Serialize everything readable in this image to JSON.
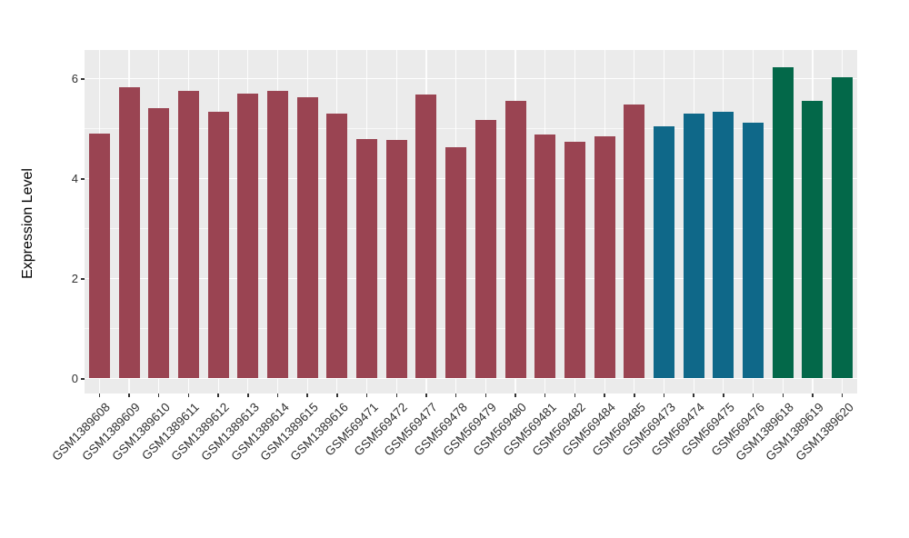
{
  "chart_data": {
    "type": "bar",
    "title": "",
    "xlabel": "",
    "ylabel": "Expression Level",
    "ylim": [
      -0.31,
      6.56
    ],
    "yticks_major": [
      0,
      2,
      4,
      6
    ],
    "yticks_minor": [
      1,
      3,
      5
    ],
    "grid": "on",
    "legend": "none",
    "panel_background": "#EBEBEB",
    "gridline_color": "#FFFFFF",
    "group_colors": {
      "group1": "#9A4452",
      "group2": "#0F6889",
      "group3": "#036849"
    },
    "samples": [
      {
        "label": "GSM1389608",
        "value": 4.89,
        "group": "group1"
      },
      {
        "label": "GSM1389609",
        "value": 5.82,
        "group": "group1"
      },
      {
        "label": "GSM1389610",
        "value": 5.4,
        "group": "group1"
      },
      {
        "label": "GSM1389611",
        "value": 5.75,
        "group": "group1"
      },
      {
        "label": "GSM1389612",
        "value": 5.33,
        "group": "group1"
      },
      {
        "label": "GSM1389613",
        "value": 5.69,
        "group": "group1"
      },
      {
        "label": "GSM1389614",
        "value": 5.74,
        "group": "group1"
      },
      {
        "label": "GSM1389615",
        "value": 5.62,
        "group": "group1"
      },
      {
        "label": "GSM1389616",
        "value": 5.29,
        "group": "group1"
      },
      {
        "label": "GSM569471",
        "value": 4.78,
        "group": "group1"
      },
      {
        "label": "GSM569472",
        "value": 4.76,
        "group": "group1"
      },
      {
        "label": "GSM569477",
        "value": 5.67,
        "group": "group1"
      },
      {
        "label": "GSM569478",
        "value": 4.62,
        "group": "group1"
      },
      {
        "label": "GSM569479",
        "value": 5.16,
        "group": "group1"
      },
      {
        "label": "GSM569480",
        "value": 5.55,
        "group": "group1"
      },
      {
        "label": "GSM569481",
        "value": 4.87,
        "group": "group1"
      },
      {
        "label": "GSM569482",
        "value": 4.73,
        "group": "group1"
      },
      {
        "label": "GSM569484",
        "value": 4.84,
        "group": "group1"
      },
      {
        "label": "GSM569485",
        "value": 5.47,
        "group": "group1"
      },
      {
        "label": "GSM569473",
        "value": 5.04,
        "group": "group2"
      },
      {
        "label": "GSM569474",
        "value": 5.29,
        "group": "group2"
      },
      {
        "label": "GSM569475",
        "value": 5.33,
        "group": "group2"
      },
      {
        "label": "GSM569476",
        "value": 5.11,
        "group": "group2"
      },
      {
        "label": "GSM1389618",
        "value": 6.22,
        "group": "group3"
      },
      {
        "label": "GSM1389619",
        "value": 5.55,
        "group": "group3"
      },
      {
        "label": "GSM1389620",
        "value": 6.02,
        "group": "group3"
      }
    ]
  }
}
